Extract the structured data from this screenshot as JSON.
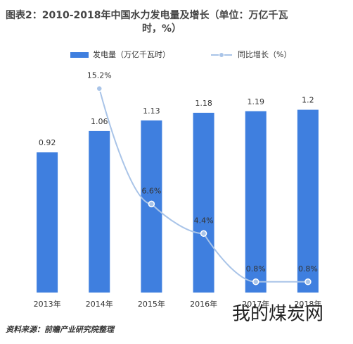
{
  "chart_data": {
    "type": "bar_line",
    "title_lines": [
      "图表2：2010-2018年中国水力发电量及增长（单位：万亿千瓦",
      "时，%）"
    ],
    "categories": [
      "2013年",
      "2014年",
      "2015年",
      "2016年",
      "2017年",
      "2018年"
    ],
    "series": [
      {
        "name": "发电量（万亿千瓦时）",
        "color": "#3f7fdf",
        "type": "bar",
        "values": [
          0.92,
          1.06,
          1.13,
          1.18,
          1.19,
          1.2
        ]
      },
      {
        "name": "同比增长（%）",
        "color": "#a9c4e8",
        "type": "line",
        "axis": "y2",
        "values": [
          null,
          15.2,
          6.6,
          4.4,
          0.8,
          0.8
        ],
        "value_labels": [
          null,
          "15.2%",
          "6.6%",
          "4.4%",
          "0.8%",
          "0.8%"
        ]
      }
    ],
    "ylim": [
      0,
      1.55
    ],
    "y2lim": [
      0,
      17.6
    ],
    "source": "资料来源：前瞻产业研究院整理",
    "watermark": "我的煤炭网"
  }
}
